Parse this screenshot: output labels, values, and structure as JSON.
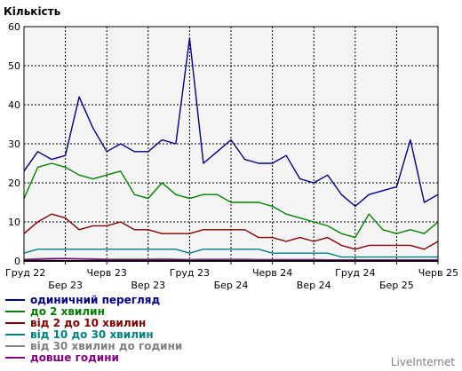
{
  "chart_data": {
    "type": "line",
    "title": "Кількість",
    "xlabel": "",
    "ylabel": "",
    "ylim": [
      0,
      60
    ],
    "yticks": [
      0,
      10,
      20,
      30,
      40,
      50,
      60
    ],
    "x_tick_labels": [
      "Груд 22",
      "Бер 23",
      "Черв 23",
      "Вер 23",
      "Груд 23",
      "Бер 24",
      "Черв 24",
      "Вер 24",
      "Груд 24",
      "Бер 25",
      "Черв 25"
    ],
    "grid": true,
    "legend_position": "bottom",
    "series": [
      {
        "name": "одиничний перегляд",
        "color": "#000080",
        "values": [
          23,
          28,
          26,
          27,
          42,
          34,
          28,
          30,
          28,
          28,
          31,
          30,
          57,
          25,
          28,
          31,
          26,
          25,
          25,
          27,
          21,
          20,
          22,
          17,
          14,
          17,
          18,
          19,
          31,
          15,
          17
        ]
      },
      {
        "name": "до 2 хвилин",
        "color": "#008000",
        "values": [
          16,
          24,
          25,
          24,
          22,
          21,
          22,
          23,
          17,
          16,
          20,
          17,
          16,
          17,
          17,
          15,
          15,
          15,
          14,
          12,
          11,
          10,
          9,
          7,
          6,
          12,
          8,
          7,
          8,
          7,
          10
        ]
      },
      {
        "name": "від 2 до 10 хвилин",
        "color": "#800000",
        "values": [
          7,
          10,
          12,
          11,
          8,
          9,
          9,
          10,
          8,
          8,
          7,
          7,
          7,
          8,
          8,
          8,
          8,
          6,
          6,
          5,
          6,
          5,
          6,
          4,
          3,
          4,
          4,
          4,
          4,
          3,
          5
        ]
      },
      {
        "name": "від 10 до 30 хвилин",
        "color": "#008080",
        "values": [
          2,
          3,
          3,
          3,
          3,
          3,
          3,
          3,
          3,
          3,
          3,
          3,
          2,
          3,
          3,
          3,
          3,
          3,
          2,
          2,
          2,
          2,
          2,
          1,
          1,
          1,
          1,
          1,
          1,
          1,
          1
        ]
      },
      {
        "name": "від 30 хвилин до години",
        "color": "#808080",
        "values": [
          0.5,
          0.6,
          0.7,
          0.7,
          0.6,
          0.6,
          0.5,
          0.5,
          0.5,
          0.5,
          0.6,
          0.5,
          0.4,
          0.5,
          0.5,
          0.5,
          0.5,
          0.4,
          0.4,
          0.4,
          0.4,
          0.4,
          0.3,
          0.3,
          0.3,
          0.3,
          0.3,
          0.3,
          0.3,
          0.3,
          0.3
        ]
      },
      {
        "name": "довше години",
        "color": "#800080",
        "values": [
          0.2,
          0.4,
          0.5,
          0.6,
          0.5,
          0.4,
          0.3,
          0.3,
          0.3,
          0.3,
          0.3,
          0.3,
          0.2,
          0.2,
          0.2,
          0.2,
          0.2,
          0.2,
          0.2,
          0.2,
          0.2,
          0.2,
          0.2,
          0.2,
          0.2,
          0.2,
          0.2,
          0.2,
          0.2,
          0.2,
          0.2
        ]
      }
    ]
  },
  "brand": "LiveInternet"
}
